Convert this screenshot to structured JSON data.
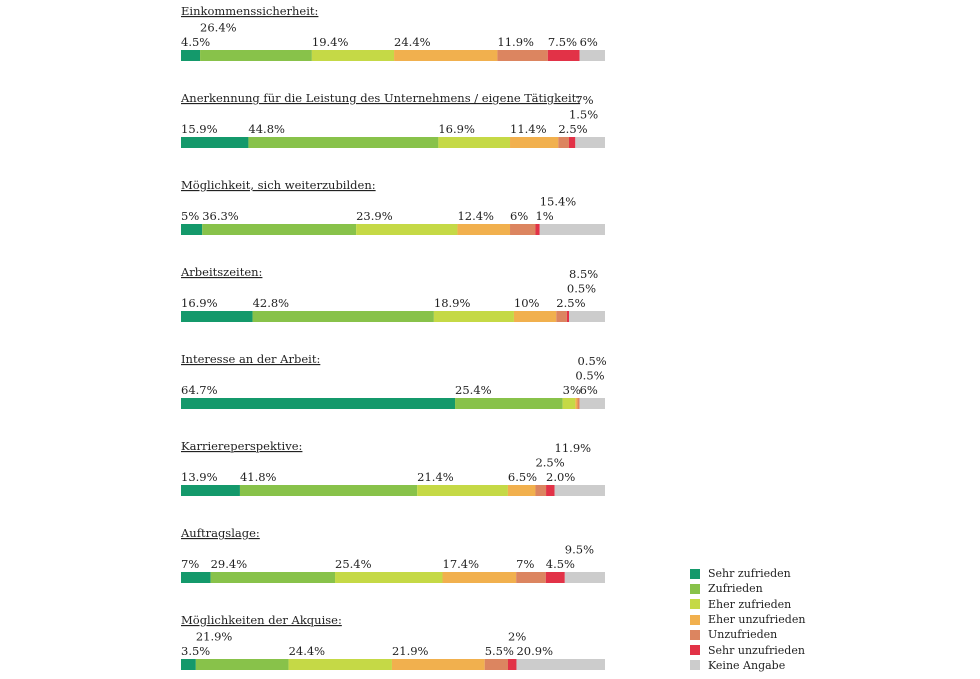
{
  "chart_data": {
    "type": "bar",
    "stacked": true,
    "orientation": "horizontal",
    "unit": "%",
    "legend_placement": "bottom-right",
    "categories": [
      "Sehr zufrieden",
      "Zufrieden",
      "Eher zufrieden",
      "Eher unzufrieden",
      "Unzufrieden",
      "Sehr unzufrieden",
      "Keine Angabe"
    ],
    "colors": [
      "#14996b",
      "#88c24a",
      "#c5d946",
      "#f1b04e",
      "#dc8560",
      "#e23247",
      "#cccccc"
    ],
    "series": [
      {
        "name": "Einkommenssicherheit:",
        "values": [
          4.5,
          26.4,
          19.4,
          24.4,
          11.9,
          7.5,
          6
        ],
        "labels": [
          "4.5%",
          "26.4%",
          "19.4%",
          "24.4%",
          "11.9%",
          "7.5%",
          "6%"
        ]
      },
      {
        "name": "Anerkennung für die Leistung des Unternehmens / eigene Tätigkeit:",
        "values": [
          15.9,
          44.8,
          16.9,
          11.4,
          2.5,
          1.5,
          7
        ],
        "labels": [
          "15.9%",
          "44.8%",
          "16.9%",
          "11.4%",
          "2.5%",
          "1.5%",
          "7%"
        ]
      },
      {
        "name": "Möglichkeit, sich weiterzubilden:",
        "values": [
          5,
          36.3,
          23.9,
          12.4,
          6,
          1,
          15.4
        ],
        "labels": [
          "5%",
          "36.3%",
          "23.9%",
          "12.4%",
          "6%",
          "1%",
          "15.4%"
        ]
      },
      {
        "name": "Arbeitszeiten:",
        "values": [
          16.9,
          42.8,
          18.9,
          10,
          2.5,
          0.5,
          8.5
        ],
        "labels": [
          "16.9%",
          "42.8%",
          "18.9%",
          "10%",
          "2.5%",
          "0.5%",
          "8.5%"
        ]
      },
      {
        "name": "Interesse an der Arbeit:",
        "values": [
          64.7,
          25.4,
          3,
          0.5,
          0.5,
          0,
          6
        ],
        "labels": [
          "64.7%",
          "25.4%",
          "3%",
          "0.5%",
          "0.5%",
          "",
          "6%"
        ]
      },
      {
        "name": "Karriereperspektive:",
        "values": [
          13.9,
          41.8,
          21.4,
          6.5,
          2.5,
          2.0,
          11.9
        ],
        "labels": [
          "13.9%",
          "41.8%",
          "21.4%",
          "6.5%",
          "2.5%",
          "2.0%",
          "11.9%"
        ]
      },
      {
        "name": "Auftragslage:",
        "values": [
          7,
          29.4,
          25.4,
          17.4,
          7,
          4.5,
          9.5
        ],
        "labels": [
          "7%",
          "29.4%",
          "25.4%",
          "17.4%",
          "7%",
          "4.5%",
          "9.5%"
        ]
      },
      {
        "name": "Möglichkeiten der Akquise:",
        "values": [
          3.5,
          21.9,
          24.4,
          21.9,
          5.5,
          2,
          20.9
        ],
        "labels": [
          "3.5%",
          "21.9%",
          "24.4%",
          "21.9%",
          "5.5%",
          "2%",
          "20.9%"
        ]
      }
    ]
  }
}
